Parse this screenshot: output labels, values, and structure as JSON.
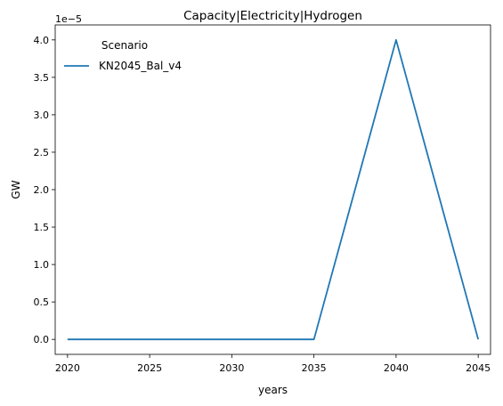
{
  "chart_data": {
    "type": "line",
    "title": "Capacity|Electricity|Hydrogen",
    "xlabel": "years",
    "ylabel": "GW",
    "y_offset_label": "1e−5",
    "x": [
      2020,
      2025,
      2030,
      2035,
      2040,
      2045
    ],
    "x_ticks": [
      2020,
      2025,
      2030,
      2035,
      2040,
      2045
    ],
    "y_ticks": [
      0.0,
      0.5,
      1.0,
      1.5,
      2.0,
      2.5,
      3.0,
      3.5,
      4.0
    ],
    "y_tick_labels": [
      "0.0",
      "0.5",
      "1.0",
      "1.5",
      "2.0",
      "2.5",
      "3.0",
      "3.5",
      "4.0"
    ],
    "y_scale_factor": 1e-05,
    "xlim": [
      2019.25,
      2045.75
    ],
    "ylim": [
      -0.2,
      4.2
    ],
    "grid": false,
    "legend": {
      "title": "Scenario",
      "placement": "top-left"
    },
    "series": [
      {
        "name": "KN2045_Bal_v4",
        "color": "#1f77b4",
        "values": [
          0.0,
          0.0,
          0.0,
          0.0,
          4.0,
          0.0
        ]
      }
    ]
  }
}
